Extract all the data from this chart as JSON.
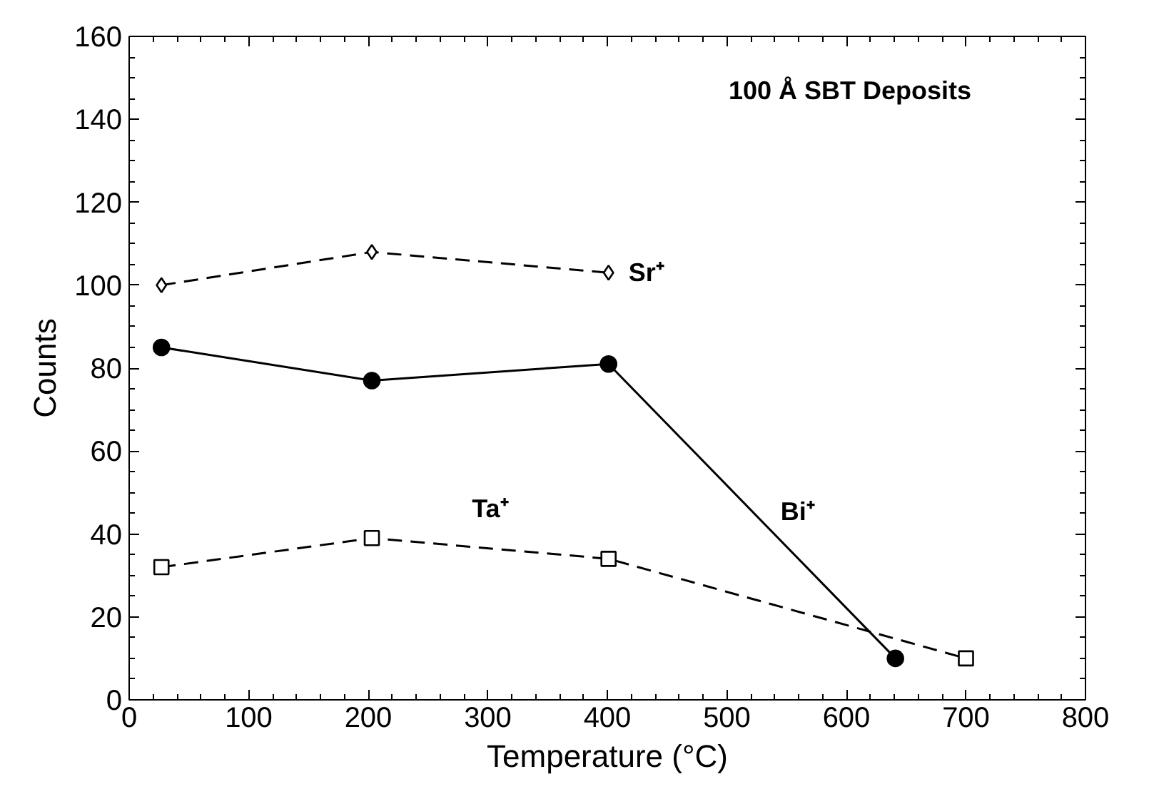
{
  "chart_data": {
    "type": "line",
    "xlabel": "Temperature (°C)",
    "ylabel": "Counts",
    "annotations": [
      "100 Å SBT Deposits"
    ],
    "xlim": [
      0,
      800
    ],
    "ylim": [
      0,
      160
    ],
    "xticks": [
      0,
      100,
      200,
      300,
      400,
      500,
      600,
      700,
      800
    ],
    "yticks": [
      0,
      20,
      40,
      60,
      80,
      100,
      120,
      140,
      160
    ],
    "series": [
      {
        "name": "Sr⁺",
        "color": "#000000",
        "x": [
          27,
          203,
          401
        ],
        "values": [
          100,
          108,
          103
        ],
        "marker": "diamond",
        "line_style": "dashed"
      },
      {
        "name": "Bi⁺",
        "color": "#000000",
        "x": [
          27,
          203,
          401,
          641
        ],
        "values": [
          85,
          77,
          81,
          10
        ],
        "marker": "circle",
        "line_style": "solid"
      },
      {
        "name": "Ta⁺",
        "color": "#000000",
        "x": [
          27,
          203,
          401,
          700
        ],
        "values": [
          32,
          39,
          34,
          10
        ],
        "marker": "square",
        "line_style": "dashed"
      }
    ]
  }
}
